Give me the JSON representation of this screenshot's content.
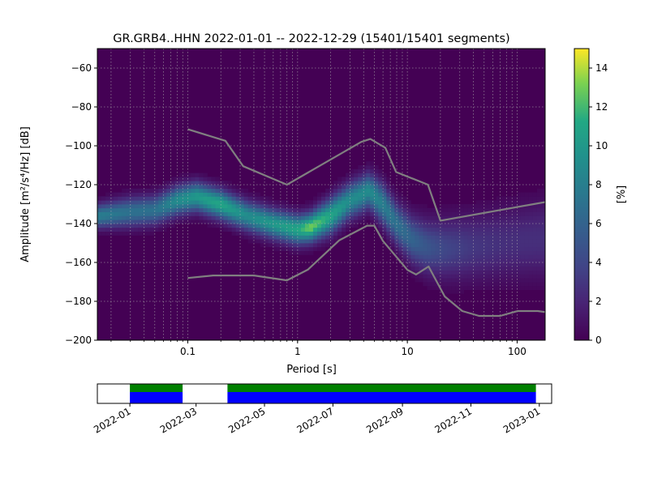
{
  "chart_data": [
    {
      "type": "heatmap",
      "title": "GR.GRB4..HHN   2022-01-01 -- 2022-12-29  (15401/15401 segments)",
      "xlabel": "Period [s]",
      "ylabel": "Amplitude [m²/s⁴/Hz] [dB]",
      "xscale": "log",
      "xlim": [
        0.015,
        180
      ],
      "ylim": [
        -200,
        -50
      ],
      "xticks": [
        {
          "value": 0.1,
          "label": "0.1"
        },
        {
          "value": 1,
          "label": "1"
        },
        {
          "value": 10,
          "label": "10"
        },
        {
          "value": 100,
          "label": "100"
        }
      ],
      "yticks": [
        {
          "value": -60,
          "label": "−60"
        },
        {
          "value": -80,
          "label": "−80"
        },
        {
          "value": -100,
          "label": "−100"
        },
        {
          "value": -120,
          "label": "−120"
        },
        {
          "value": -140,
          "label": "−140"
        },
        {
          "value": -160,
          "label": "−160"
        },
        {
          "value": -180,
          "label": "−180"
        },
        {
          "value": -200,
          "label": "−200"
        }
      ],
      "grid": true,
      "colormap": "viridis",
      "colorbar": {
        "label": "[%]",
        "range": [
          0,
          15
        ],
        "ticks": [
          {
            "value": 0,
            "label": "0"
          },
          {
            "value": 2,
            "label": "2"
          },
          {
            "value": 4,
            "label": "4"
          },
          {
            "value": 6,
            "label": "6"
          },
          {
            "value": 8,
            "label": "8"
          },
          {
            "value": 10,
            "label": "10"
          },
          {
            "value": 12,
            "label": "12"
          },
          {
            "value": 14,
            "label": "14"
          }
        ]
      },
      "mode_curve": {
        "period": [
          0.015,
          0.03,
          0.05,
          0.08,
          0.12,
          0.2,
          0.35,
          0.6,
          1.0,
          1.3,
          2.0,
          3.0,
          4.5,
          6.0,
          8.0,
          11.0,
          15.0,
          22.0,
          40.0,
          80.0,
          180.0
        ],
        "amplitude": [
          -136,
          -134,
          -133,
          -128,
          -126,
          -130,
          -136,
          -140,
          -143,
          -142,
          -136,
          -128,
          -123,
          -130,
          -140,
          -148,
          -152,
          -153,
          -152,
          -150,
          -148
        ],
        "peak_percent": [
          8,
          7,
          7,
          9,
          10,
          11,
          9,
          10,
          11,
          13,
          11,
          9,
          9,
          8,
          7,
          6,
          5,
          4,
          3,
          2.5,
          2.5
        ],
        "spread_db": [
          4,
          5,
          5,
          5,
          5,
          5,
          5,
          5,
          5,
          5,
          6,
          6,
          6,
          7,
          7,
          8,
          9,
          10,
          11,
          12,
          13
        ]
      },
      "nhnm": {
        "period": [
          0.1,
          0.22,
          0.32,
          0.8,
          3.8,
          4.6,
          6.3,
          7.9,
          15.4,
          20.0,
          354.8
        ],
        "amplitude": [
          -91.5,
          -97.4,
          -110.5,
          -120.0,
          -98.0,
          -96.5,
          -101.0,
          -113.5,
          -120.0,
          -138.5,
          -126.0
        ]
      },
      "nlnm": {
        "period": [
          0.1,
          0.17,
          0.4,
          0.8,
          1.24,
          2.4,
          4.3,
          5.0,
          6.0,
          10.0,
          12.0,
          15.6,
          21.9,
          31.6,
          45.0,
          70.0,
          101.0,
          154.0,
          328.0
        ],
        "amplitude": [
          -168.0,
          -166.7,
          -166.7,
          -169.2,
          -163.7,
          -148.6,
          -141.1,
          -141.1,
          -149.0,
          -163.8,
          -166.2,
          -162.1,
          -177.5,
          -185.0,
          -187.5,
          -187.5,
          -185.0,
          -185.0,
          -187.5
        ]
      },
      "period_gridlines": [
        0.02,
        0.03,
        0.04,
        0.05,
        0.06,
        0.07,
        0.08,
        0.09,
        0.1,
        0.2,
        0.3,
        0.4,
        0.5,
        0.6,
        0.7,
        0.8,
        0.9,
        1,
        2,
        3,
        4,
        5,
        6,
        7,
        8,
        9,
        10,
        20,
        30,
        40,
        50,
        60,
        70,
        80,
        90,
        100
      ]
    },
    {
      "type": "bar",
      "title": "",
      "xlabel": "",
      "ylabel": "",
      "xlim": [
        "2021-12-03",
        "2023-01-12"
      ],
      "xticks": [
        "2022-01",
        "2022-03",
        "2022-05",
        "2022-07",
        "2022-09",
        "2022-11",
        "2023-01"
      ],
      "coverage_segments": [
        {
          "start": "2022-01-01",
          "end": "2022-02-17"
        },
        {
          "start": "2022-03-29",
          "end": "2022-12-29"
        }
      ],
      "colors": {
        "data": "#0000ff",
        "processed": "#008000"
      }
    }
  ]
}
